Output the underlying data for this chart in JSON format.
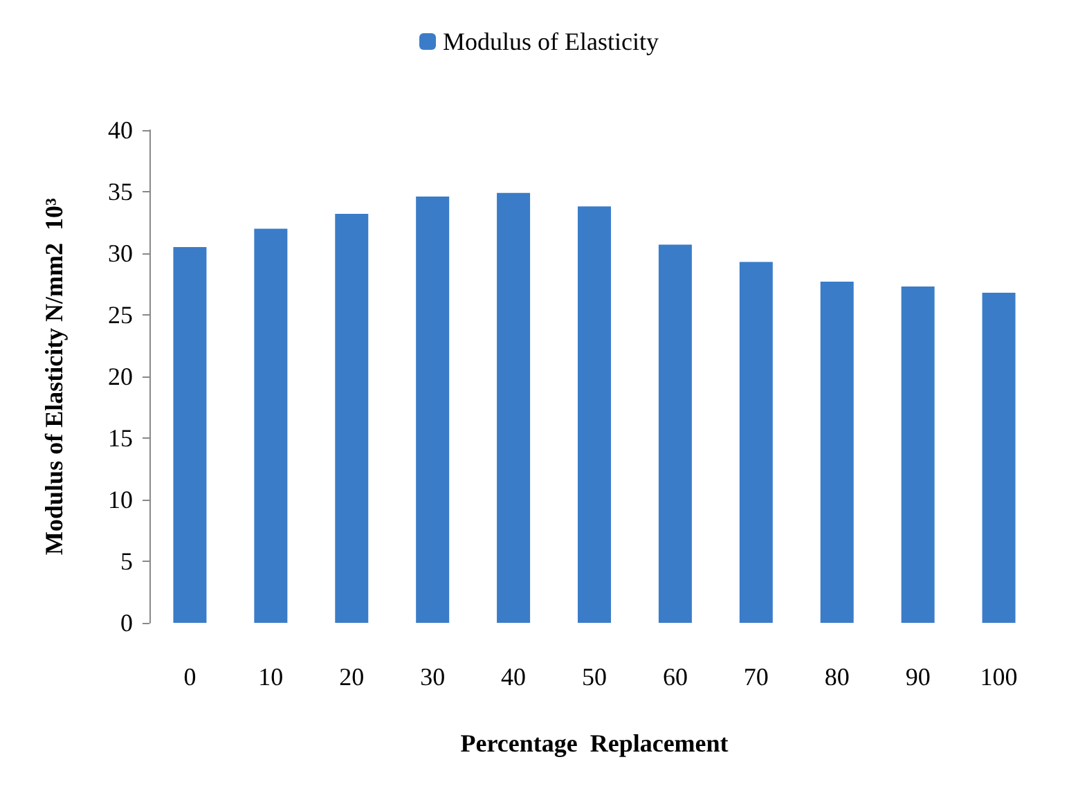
{
  "chart_data": {
    "type": "bar",
    "categories": [
      "0",
      "10",
      "20",
      "30",
      "40",
      "50",
      "60",
      "70",
      "80",
      "90",
      "100"
    ],
    "series": [
      {
        "name": "Modulus of Elasticity",
        "color": "#3a7cc8",
        "values": [
          30.5,
          32,
          33.2,
          34.6,
          34.9,
          33.8,
          30.7,
          29.3,
          27.7,
          27.3,
          26.8
        ]
      }
    ],
    "xlabel": "Percentage  Replacement",
    "ylabel": "Modulus of Elasticity N/mm2  10³",
    "ylim": [
      0,
      40
    ],
    "yticks": [
      0,
      5,
      10,
      15,
      20,
      25,
      30,
      35,
      40
    ],
    "grid": false,
    "legend": "top"
  }
}
